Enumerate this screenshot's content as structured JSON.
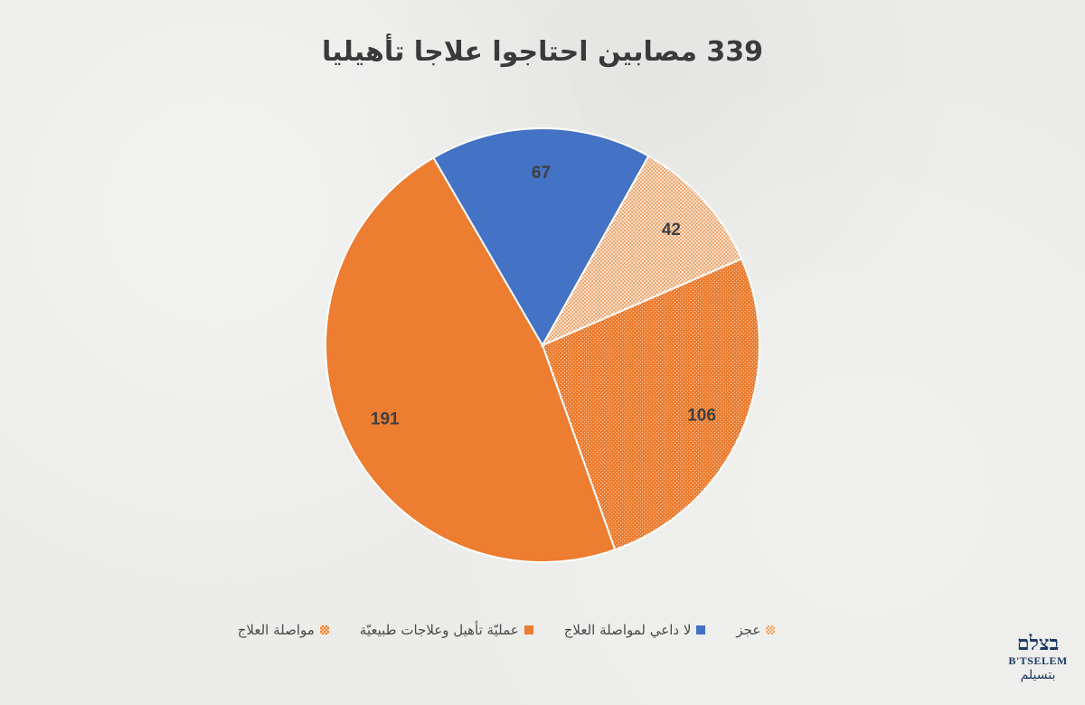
{
  "chart_data": {
    "type": "pie",
    "title": "339  مصابين احتاجوا علاجا تأهيليا",
    "slices": [
      {
        "label": "مواصلة العلاج",
        "value": 106,
        "color": "#ed7d31",
        "pattern": "fine-check"
      },
      {
        "label": "عمليّة تأهيل وعلاجات طبيعيّة",
        "value": 191,
        "color": "#ed7d31",
        "pattern": "solid"
      },
      {
        "label": "لا داعي لمواصلة العلاج",
        "value": 67,
        "color": "#4472c4",
        "pattern": "solid"
      },
      {
        "label": "عجز",
        "value": 42,
        "color": "#f4b183",
        "pattern": "light-check"
      }
    ],
    "legend": {
      "position": "bottom"
    }
  },
  "logo": {
    "hebrew": "בצלם",
    "latin": "B'TSELEM",
    "arabic": "بتسيلم"
  }
}
